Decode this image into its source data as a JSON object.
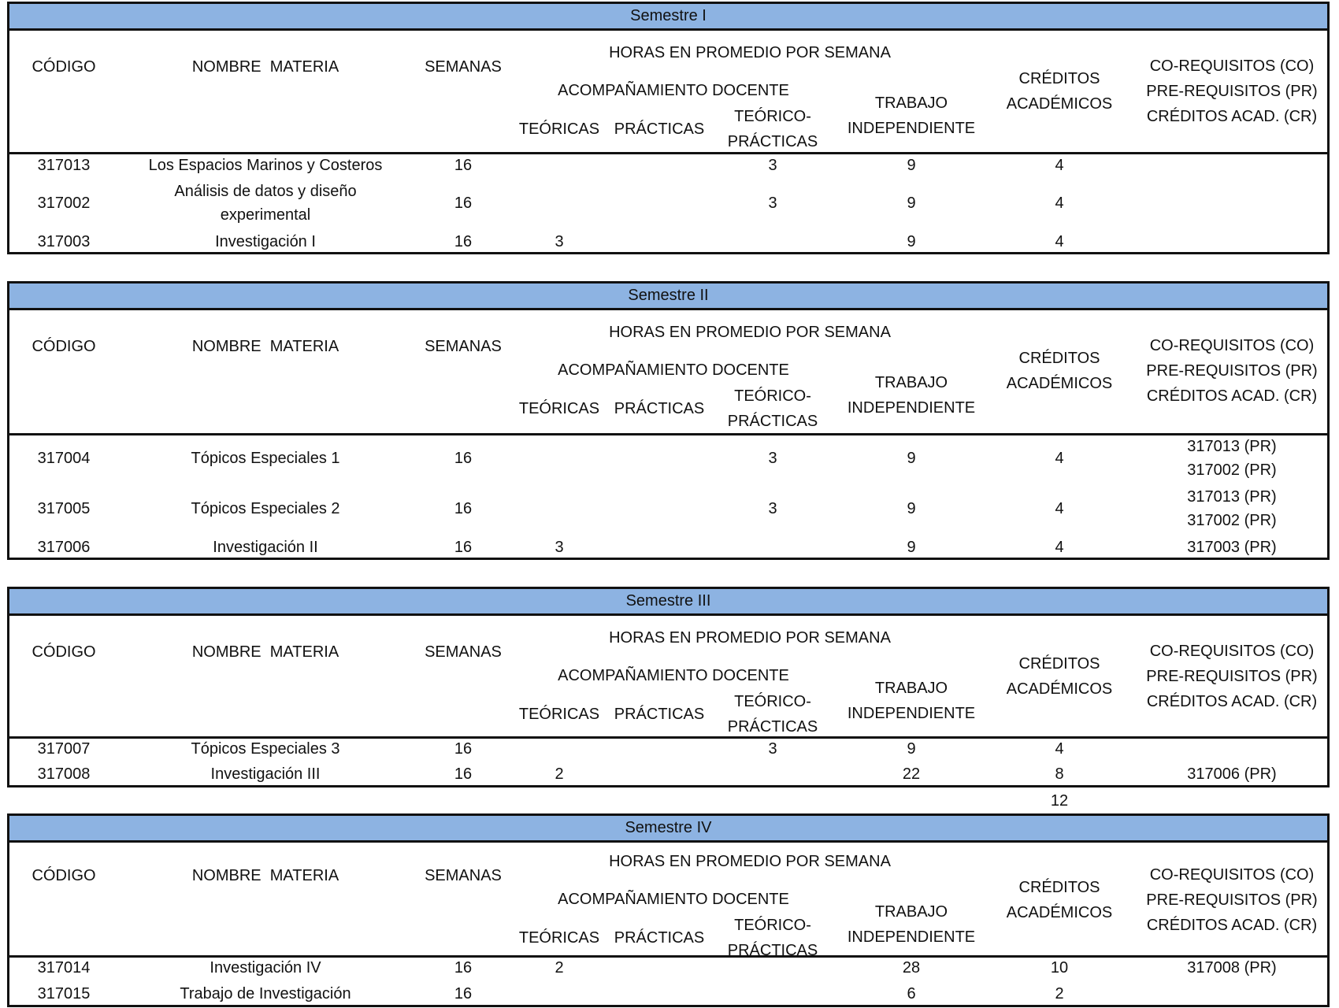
{
  "colors": {
    "band": "#8DB3E2",
    "border": "#111111"
  },
  "header": {
    "codigo": "CÓDIGO",
    "nombre": "NOMBRE  MATERIA",
    "semanas": "SEMANAS",
    "horas": "HORAS EN PROMEDIO POR SEMANA",
    "acompanamiento": "ACOMPAÑAMIENTO DOCENTE",
    "teoricas": "TEÓRICAS",
    "practicas": "PRÁCTICAS",
    "teorico_practicas": [
      "TEÓRICO-",
      "PRÁCTICAS"
    ],
    "trabajo": [
      "TRABAJO",
      "INDEPENDIENTE"
    ],
    "creditos": [
      "CRÉDITOS",
      "ACADÉMICOS"
    ],
    "requisitos": [
      "CO-REQUISITOS (CO)",
      "PRE-REQUISITOS (PR)",
      "CRÉDITOS ACAD. (CR)"
    ]
  },
  "sections": [
    {
      "title": "Semestre I",
      "rows": [
        {
          "codigo": "317013",
          "nombre": "Los Espacios Marinos y Costeros",
          "semanas": "16",
          "teoricas": "",
          "practicas": "",
          "teorico_practicas": "3",
          "trabajo": "9",
          "creditos": "4",
          "requisitos": ""
        },
        {
          "codigo": "317002",
          "nombre": "Análisis de datos y diseño\nexperimental",
          "semanas": "16",
          "teoricas": "",
          "practicas": "",
          "teorico_practicas": "3",
          "trabajo": "9",
          "creditos": "4",
          "requisitos": ""
        },
        {
          "codigo": "317003",
          "nombre": "Investigación I",
          "semanas": "16",
          "teoricas": "3",
          "practicas": "",
          "teorico_practicas": "",
          "trabajo": "9",
          "creditos": "4",
          "requisitos": ""
        }
      ]
    },
    {
      "title": "Semestre II",
      "rows": [
        {
          "codigo": "317004",
          "nombre": "Tópicos Especiales 1",
          "semanas": "16",
          "teoricas": "",
          "practicas": "",
          "teorico_practicas": "3",
          "trabajo": "9",
          "creditos": "4",
          "requisitos": "317013 (PR)\n317002 (PR)"
        },
        {
          "codigo": "317005",
          "nombre": "Tópicos Especiales 2",
          "semanas": "16",
          "teoricas": "",
          "practicas": "",
          "teorico_practicas": "3",
          "trabajo": "9",
          "creditos": "4",
          "requisitos": "317013 (PR)\n317002 (PR)"
        },
        {
          "codigo": "317006",
          "nombre": "Investigación II",
          "semanas": "16",
          "teoricas": "3",
          "practicas": "",
          "teorico_practicas": "",
          "trabajo": "9",
          "creditos": "4",
          "requisitos": "317003 (PR)"
        }
      ]
    },
    {
      "title": "Semestre III",
      "rows": [
        {
          "codigo": "317007",
          "nombre": "Tópicos Especiales 3",
          "semanas": "16",
          "teoricas": "",
          "practicas": "",
          "teorico_practicas": "3",
          "trabajo": "9",
          "creditos": "4",
          "requisitos": ""
        },
        {
          "codigo": "317008",
          "nombre": "Investigación III",
          "semanas": "16",
          "teoricas": "2",
          "practicas": "",
          "teorico_practicas": "",
          "trabajo": "22",
          "creditos": "8",
          "requisitos": "317006 (PR)"
        }
      ],
      "credit_total": "12"
    },
    {
      "title": "Semestre IV",
      "rows": [
        {
          "codigo": "317014",
          "nombre": "Investigación IV",
          "semanas": "16",
          "teoricas": "2",
          "practicas": "",
          "teorico_practicas": "",
          "trabajo": "28",
          "creditos": "10",
          "requisitos": "317008 (PR)"
        },
        {
          "codigo": "317015",
          "nombre": "Trabajo de Investigación",
          "semanas": "16",
          "teoricas": "",
          "practicas": "",
          "teorico_practicas": "",
          "trabajo": "6",
          "creditos": "2",
          "requisitos": ""
        }
      ]
    }
  ]
}
